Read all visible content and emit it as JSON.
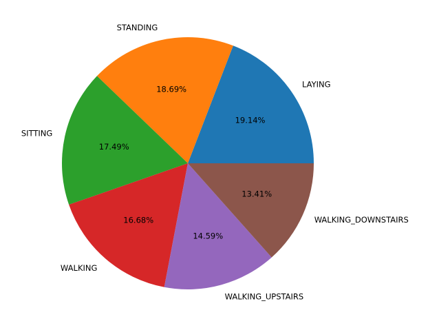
{
  "chart_data": {
    "type": "pie",
    "labels": [
      "LAYING",
      "STANDING",
      "SITTING",
      "WALKING",
      "WALKING_UPSTAIRS",
      "WALKING_DOWNSTAIRS"
    ],
    "values": [
      19.14,
      18.69,
      17.49,
      16.68,
      14.59,
      13.41
    ],
    "percent_labels": [
      "19.14%",
      "18.69%",
      "17.49%",
      "16.68%",
      "14.59%",
      "13.41%"
    ],
    "colors": [
      "#1f77b4",
      "#ff7f0e",
      "#2ca02c",
      "#d62728",
      "#9467bd",
      "#8c564b"
    ],
    "start_angle_deg": 0,
    "direction": "counterclockwise"
  }
}
